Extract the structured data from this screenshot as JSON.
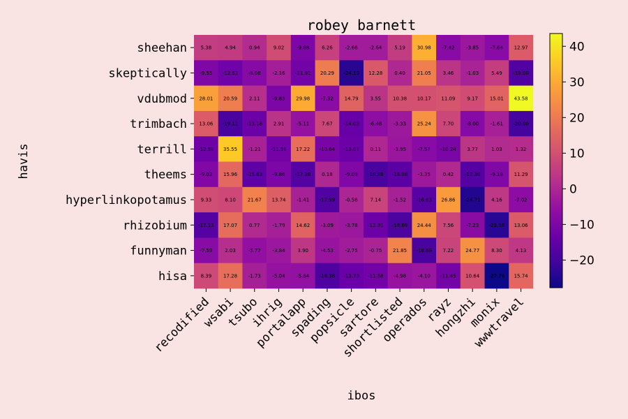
{
  "chart_data": {
    "type": "heatmap",
    "title": "robey barnett",
    "xlabel": "ibos",
    "ylabel": "havis",
    "x_categories": [
      "recodified",
      "wsabi",
      "tsubo",
      "ihrig",
      "portalapp",
      "spading",
      "popsicle",
      "sartore",
      "shortlisted",
      "operados",
      "rayz",
      "hongzhi",
      "monix",
      "wwwtravel"
    ],
    "y_categories": [
      "sheehan",
      "skeptically",
      "vdubmod",
      "trimbach",
      "terrill",
      "theems",
      "hyperlinkopotamus",
      "rhizobium",
      "funnyman",
      "hisa"
    ],
    "values": [
      [
        5.38,
        4.94,
        0.94,
        9.02,
        -9.88,
        6.26,
        -2.66,
        -2.64,
        5.19,
        30.98,
        -7.42,
        -3.85,
        -7.64,
        12.97
      ],
      [
        -9.55,
        -12.61,
        -8.08,
        -2.16,
        -11.91,
        20.29,
        -24.1,
        12.28,
        0.4,
        21.05,
        3.46,
        -1.03,
        5.49,
        -18.0
      ],
      [
        28.01,
        20.59,
        2.11,
        -9.83,
        29.98,
        -7.32,
        14.79,
        3.55,
        10.38,
        10.17,
        11.09,
        9.17,
        15.01,
        43.58
      ],
      [
        13.06,
        -19.11,
        -13.16,
        2.91,
        -5.11,
        7.67,
        -14.03,
        -6.48,
        -3.33,
        25.24,
        7.7,
        -8.0,
        -1.61,
        -20.0
      ],
      [
        -12.58,
        35.55,
        -1.21,
        -11.59,
        17.22,
        -10.64,
        -13.07,
        0.11,
        -3.95,
        -7.57,
        -10.24,
        3.77,
        1.03,
        1.32
      ],
      [
        -9.02,
        15.96,
        -15.63,
        -9.86,
        -17.28,
        0.18,
        -9.09,
        -18.88,
        -16.08,
        -3.35,
        0.42,
        -17.3,
        -9.18,
        11.29
      ],
      [
        9.33,
        8.1,
        21.67,
        13.74,
        -1.41,
        -17.99,
        -0.56,
        7.14,
        -1.52,
        -16.63,
        26.86,
        -24.71,
        4.16,
        -7.02
      ],
      [
        -17.13,
        17.07,
        0.77,
        -1.79,
        14.62,
        -3.09,
        -3.78,
        -12.91,
        -18.69,
        24.44,
        7.56,
        -7.23,
        -23.98,
        13.06
      ],
      [
        -7.59,
        2.03,
        -5.77,
        -3.84,
        3.9,
        -4.53,
        -2.75,
        -0.75,
        21.85,
        -18.88,
        7.22,
        24.77,
        8.3,
        4.13
      ],
      [
        8.39,
        17.28,
        -1.73,
        -5.04,
        -5.64,
        -18.38,
        -13.73,
        -11.58,
        -4.98,
        -4.1,
        -11.45,
        10.64,
        -27.76,
        15.74
      ]
    ],
    "colormap": "plasma",
    "vmin": -27.76,
    "vmax": 43.58,
    "colorbar_ticks": [
      -20,
      -10,
      0,
      10,
      20,
      30,
      40
    ],
    "colorbar_tick_labels": [
      "−20",
      "−10",
      "0",
      "10",
      "20",
      "30",
      "40"
    ]
  },
  "colors": {
    "background": "#f9e3e3"
  }
}
